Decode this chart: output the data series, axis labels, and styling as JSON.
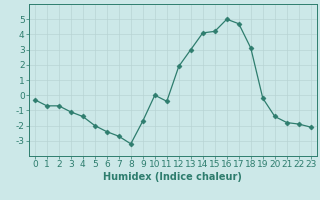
{
  "x": [
    0,
    1,
    2,
    3,
    4,
    5,
    6,
    7,
    8,
    9,
    10,
    11,
    12,
    13,
    14,
    15,
    16,
    17,
    18,
    19,
    20,
    21,
    22,
    23
  ],
  "y": [
    -0.3,
    -0.7,
    -0.7,
    -1.1,
    -1.4,
    -2.0,
    -2.4,
    -2.7,
    -3.2,
    -1.7,
    0.0,
    -0.4,
    1.9,
    3.0,
    4.1,
    4.2,
    5.0,
    4.7,
    3.1,
    -0.2,
    -1.4,
    -1.8,
    -1.9,
    -2.1
  ],
  "line_color": "#2e7d6e",
  "marker": "D",
  "marker_size": 2.5,
  "bg_color": "#cce8e8",
  "grid_color": "#b8d4d4",
  "xlabel": "Humidex (Indice chaleur)",
  "ylabel": "",
  "xlim": [
    -0.5,
    23.5
  ],
  "ylim": [
    -4,
    6
  ],
  "yticks": [
    -3,
    -2,
    -1,
    0,
    1,
    2,
    3,
    4,
    5
  ],
  "xticks": [
    0,
    1,
    2,
    3,
    4,
    5,
    6,
    7,
    8,
    9,
    10,
    11,
    12,
    13,
    14,
    15,
    16,
    17,
    18,
    19,
    20,
    21,
    22,
    23
  ],
  "tick_color": "#2e7d6e",
  "label_color": "#2e7d6e",
  "xlabel_fontsize": 7,
  "tick_fontsize": 6.5
}
